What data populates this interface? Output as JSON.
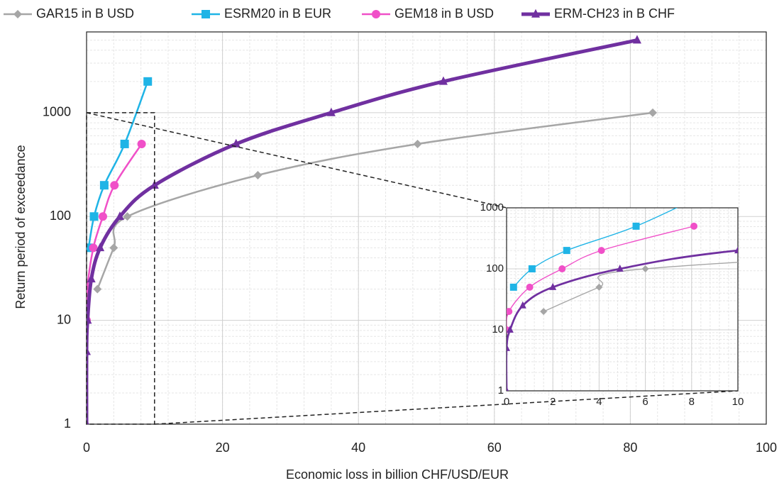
{
  "chart_data": [
    {
      "type": "line",
      "log_y": true,
      "grid": true,
      "legend": "top",
      "xlabel": "Economic loss in billion CHF/USD/EUR",
      "ylabel": "Return period of exceedance",
      "xlim": [
        0,
        100
      ],
      "ylim": [
        1,
        6000
      ],
      "xticks": [
        0,
        20,
        40,
        60,
        80,
        100
      ],
      "yticks": [
        1,
        10,
        100,
        1000
      ],
      "series": [
        {
          "name": "GAR15 in B USD",
          "color": "#a6a6a6",
          "marker": "diamond",
          "width": 2.5,
          "x": [
            1.6,
            4.0,
            6.0,
            25.2,
            48.7,
            83.3
          ],
          "values": [
            20,
            50,
            100,
            250,
            500,
            1000
          ]
        },
        {
          "name": "ESRM20 in B EUR",
          "color": "#1fb4e6",
          "marker": "square",
          "width": 2.5,
          "x": [
            0.3,
            1.1,
            2.6,
            5.6,
            9.0
          ],
          "values": [
            50,
            100,
            200,
            500,
            2000
          ]
        },
        {
          "name": "GEM18 in B USD",
          "color": "#f050c8",
          "marker": "circle",
          "width": 2.5,
          "x": [
            0,
            0.1,
            1.0,
            2.4,
            4.1,
            8.1
          ],
          "values": [
            10,
            20,
            50,
            100,
            200,
            500
          ]
        },
        {
          "name": "ERM-CH23 in B CHF",
          "color": "#7030a0",
          "marker": "triangle",
          "width": 5,
          "x": [
            0,
            0,
            0.15,
            0.7,
            2.0,
            4.9,
            10,
            22,
            36,
            52.5,
            81
          ],
          "values": [
            1,
            5,
            10,
            25,
            50,
            100,
            200,
            500,
            1000,
            2000,
            5000
          ]
        }
      ]
    },
    {
      "type": "inset",
      "log_y": true,
      "grid": true,
      "xlim": [
        0,
        10
      ],
      "ylim": [
        1,
        1000
      ],
      "xticks": [
        0,
        2,
        4,
        6,
        8,
        10
      ],
      "yticks": [
        1,
        10,
        100,
        1000
      ]
    }
  ]
}
